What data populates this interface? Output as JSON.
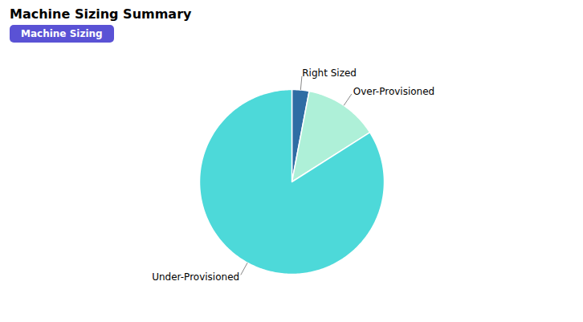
{
  "chart_data": {
    "type": "pie",
    "title": "Machine Sizing Summary",
    "subtitle": "Machine Sizing",
    "categories": [
      "Right Sized",
      "Over-Provisioned",
      "Under-Provisioned"
    ],
    "values": [
      3,
      13,
      84
    ],
    "colors": [
      "#2e6da4",
      "#aef0d8",
      "#4dd9d9"
    ]
  }
}
